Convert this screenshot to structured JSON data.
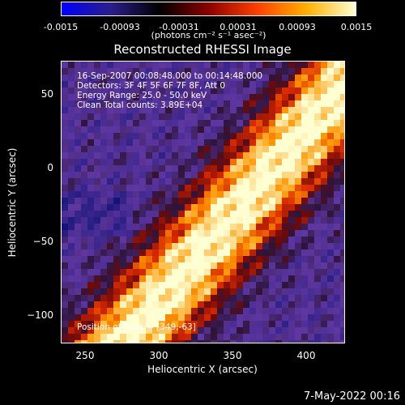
{
  "colorbar": {
    "ticks": [
      "-0.0015",
      "-0.00093",
      "-0.00031",
      "0.00031",
      "0.00093",
      "0.0015"
    ],
    "units": "(photons cm⁻² s⁻¹ asec⁻²)",
    "colors": [
      "#0000ff",
      "#2b1e8c",
      "#000000",
      "#8c0000",
      "#ff4000",
      "#ffb000",
      "#ffffd0"
    ]
  },
  "chart_data": {
    "type": "heatmap",
    "title": "Reconstructed RHESSI Image",
    "xlabel": "Heliocentric X (arcsec)",
    "ylabel": "Heliocentric Y (arcsec)",
    "xlim": [
      235,
      425
    ],
    "ylim": [
      -120,
      70
    ],
    "x_ticks": [
      "250",
      "300",
      "350",
      "400"
    ],
    "y_ticks": [
      "50",
      "0",
      "−50",
      "−100"
    ],
    "colorbar_range": [
      -0.0015,
      0.0015
    ],
    "peak_position": [
      349,
      -63
    ],
    "annotations": [
      "16-Sep-2007 00:08:48.000 to 00:14:48.000",
      "Detectors: 3F 4F 5F 6F 7F 8F, Att 0",
      "Energy Range: 25.0 - 50.0 keV",
      "Clean     Total counts: 3.89E+04"
    ],
    "peak_label": "Position of Peak = [349,-63]"
  },
  "timestamp": "7-May-2022 00:16"
}
